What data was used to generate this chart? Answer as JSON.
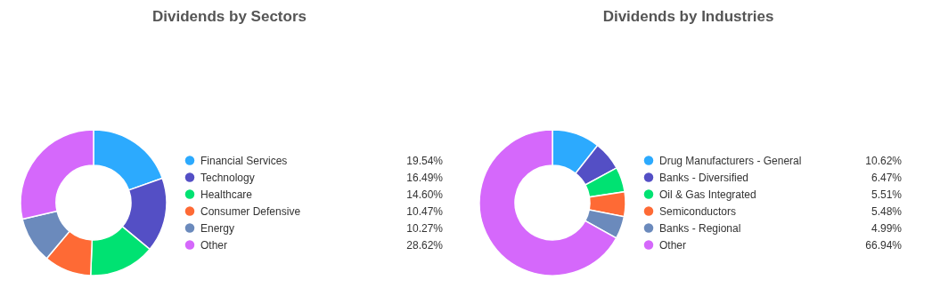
{
  "chart_data": [
    {
      "type": "donut",
      "title": "Dividends by Sectors",
      "categories": [
        "Financial Services",
        "Technology",
        "Healthcare",
        "Consumer Defensive",
        "Energy",
        "Other"
      ],
      "values": [
        19.54,
        16.49,
        14.6,
        10.47,
        10.27,
        28.62
      ],
      "value_labels": [
        "19.54%",
        "16.49%",
        "14.60%",
        "10.47%",
        "10.27%",
        "28.62%"
      ],
      "colors": [
        "#2caafe",
        "#544fc5",
        "#00e272",
        "#fe6a35",
        "#6b8abc",
        "#d568fb"
      ],
      "legend": "right"
    },
    {
      "type": "donut",
      "title": "Dividends by Industries",
      "categories": [
        "Drug Manufacturers - General",
        "Banks - Diversified",
        "Oil & Gas Integrated",
        "Semiconductors",
        "Banks - Regional",
        "Other"
      ],
      "values": [
        10.62,
        6.47,
        5.51,
        5.48,
        4.99,
        66.94
      ],
      "value_labels": [
        "10.62%",
        "6.47%",
        "5.51%",
        "5.48%",
        "4.99%",
        "66.94%"
      ],
      "colors": [
        "#2caafe",
        "#544fc5",
        "#00e272",
        "#fe6a35",
        "#6b8abc",
        "#d568fb"
      ],
      "legend": "right"
    }
  ]
}
